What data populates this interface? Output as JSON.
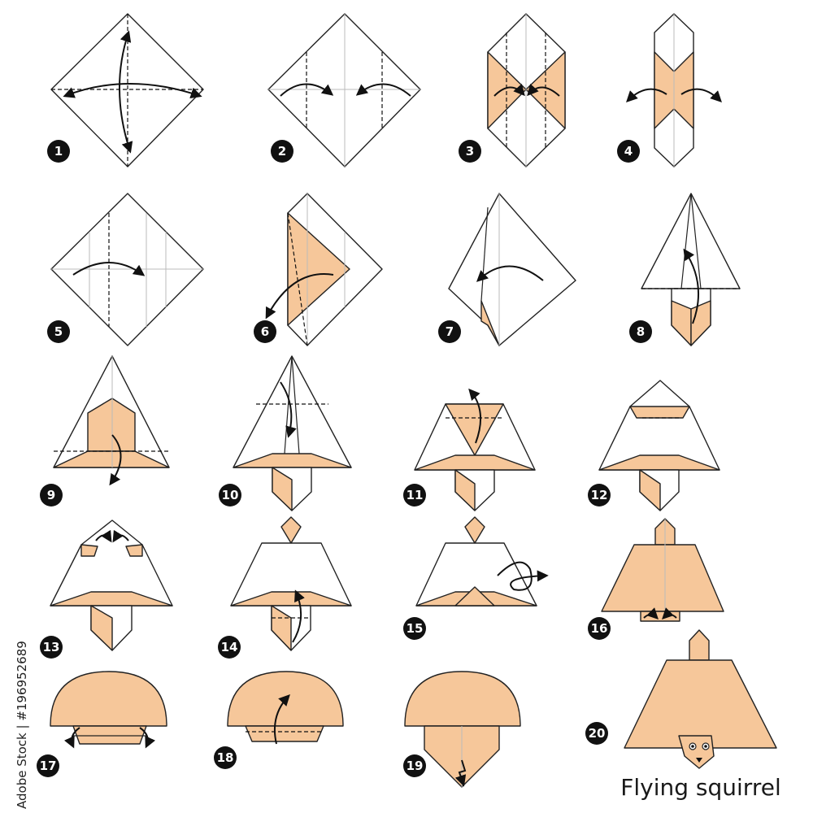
{
  "title": "Flying squirrel",
  "side_text": "Adobe Stock | #196952689",
  "colors": {
    "paper_color": "#f6c79a",
    "paper_white": "#ffffff",
    "outline": "#222222",
    "badge": "#111111",
    "badge_text": "#ffffff",
    "crease": "#bbbbbb"
  },
  "steps": [
    {
      "number": "1"
    },
    {
      "number": "2"
    },
    {
      "number": "3"
    },
    {
      "number": "4"
    },
    {
      "number": "5"
    },
    {
      "number": "6"
    },
    {
      "number": "7"
    },
    {
      "number": "8"
    },
    {
      "number": "9"
    },
    {
      "number": "10"
    },
    {
      "number": "11"
    },
    {
      "number": "12"
    },
    {
      "number": "13"
    },
    {
      "number": "14"
    },
    {
      "number": "15"
    },
    {
      "number": "16"
    },
    {
      "number": "17"
    },
    {
      "number": "18"
    },
    {
      "number": "19"
    },
    {
      "number": "20"
    }
  ]
}
